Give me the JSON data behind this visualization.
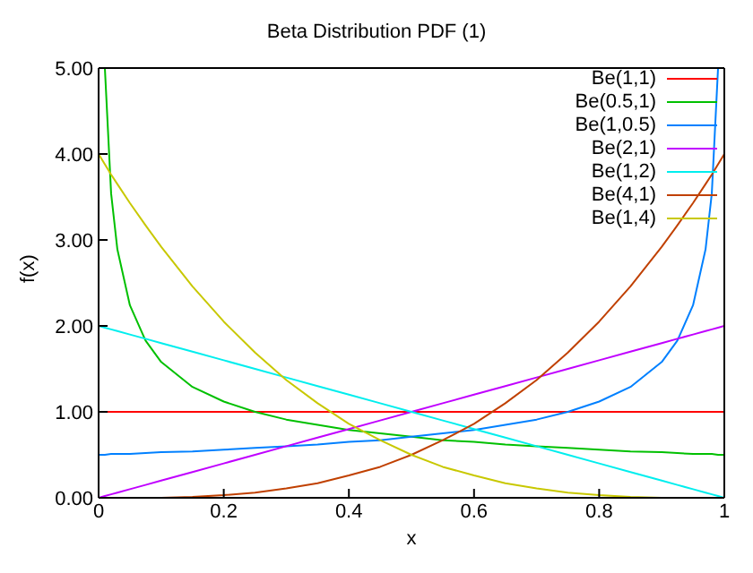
{
  "chart_data": {
    "type": "line",
    "title": "Beta Distribution PDF (1)",
    "xlabel": "x",
    "ylabel": "f(x)",
    "x": [
      0,
      0.01,
      0.02,
      0.03,
      0.05,
      0.075,
      0.1,
      0.15,
      0.2,
      0.25,
      0.3,
      0.35,
      0.4,
      0.45,
      0.5,
      0.55,
      0.6,
      0.65,
      0.7,
      0.75,
      0.8,
      0.85,
      0.9,
      0.925,
      0.95,
      0.97,
      0.98,
      0.99,
      1
    ],
    "series": [
      {
        "name": "Be(1,1)",
        "color": "#ff0000",
        "values": [
          1,
          1,
          1,
          1,
          1,
          1,
          1,
          1,
          1,
          1,
          1,
          1,
          1,
          1,
          1,
          1,
          1,
          1,
          1,
          1,
          1,
          1,
          1,
          1,
          1,
          1,
          1,
          1,
          1
        ]
      },
      {
        "name": "Be(0.5,1)",
        "color": "#00c000",
        "values": [
          null,
          5.0,
          3.54,
          2.89,
          2.24,
          1.83,
          1.58,
          1.29,
          1.12,
          1.0,
          0.91,
          0.85,
          0.79,
          0.75,
          0.71,
          0.67,
          0.65,
          0.62,
          0.6,
          0.58,
          0.56,
          0.54,
          0.53,
          0.52,
          0.51,
          0.51,
          0.51,
          0.5,
          0.5
        ]
      },
      {
        "name": "Be(1,0.5)",
        "color": "#0080ff",
        "values": [
          0.5,
          0.5,
          0.51,
          0.51,
          0.51,
          0.52,
          0.53,
          0.54,
          0.56,
          0.58,
          0.6,
          0.62,
          0.65,
          0.67,
          0.71,
          0.75,
          0.79,
          0.85,
          0.91,
          1.0,
          1.12,
          1.29,
          1.58,
          1.83,
          2.24,
          2.89,
          3.54,
          5.0,
          null
        ]
      },
      {
        "name": "Be(2,1)",
        "color": "#c000ff",
        "values": [
          0,
          0.02,
          0.04,
          0.06,
          0.1,
          0.15,
          0.2,
          0.3,
          0.4,
          0.5,
          0.6,
          0.7,
          0.8,
          0.9,
          1.0,
          1.1,
          1.2,
          1.3,
          1.4,
          1.5,
          1.6,
          1.7,
          1.8,
          1.85,
          1.9,
          1.94,
          1.96,
          1.98,
          2.0
        ]
      },
      {
        "name": "Be(1,2)",
        "color": "#00eeee",
        "values": [
          2.0,
          1.98,
          1.96,
          1.94,
          1.9,
          1.85,
          1.8,
          1.7,
          1.6,
          1.5,
          1.4,
          1.3,
          1.2,
          1.1,
          1.0,
          0.9,
          0.8,
          0.7,
          0.6,
          0.5,
          0.4,
          0.3,
          0.2,
          0.15,
          0.1,
          0.06,
          0.04,
          0.02,
          0
        ]
      },
      {
        "name": "Be(4,1)",
        "color": "#c04000",
        "values": [
          null,
          null,
          null,
          null,
          null,
          0,
          0,
          0.01,
          0.03,
          0.06,
          0.11,
          0.17,
          0.26,
          0.36,
          0.5,
          0.67,
          0.86,
          1.1,
          1.37,
          1.69,
          2.05,
          2.46,
          2.92,
          3.17,
          3.43,
          3.65,
          3.76,
          3.88,
          4.0
        ]
      },
      {
        "name": "Be(1,4)",
        "color": "#c8c800",
        "values": [
          4.0,
          3.88,
          3.76,
          3.65,
          3.43,
          3.17,
          2.92,
          2.46,
          2.05,
          1.69,
          1.37,
          1.1,
          0.86,
          0.67,
          0.5,
          0.36,
          0.26,
          0.17,
          0.11,
          0.06,
          0.03,
          0.01,
          0,
          0,
          null,
          null,
          null,
          null,
          null
        ]
      }
    ],
    "xlim": [
      0,
      1
    ],
    "xticks": [
      {
        "value": 0,
        "label": "0"
      },
      {
        "value": 0.2,
        "label": "0.2"
      },
      {
        "value": 0.4,
        "label": "0.4"
      },
      {
        "value": 0.6,
        "label": "0.6"
      },
      {
        "value": 0.8,
        "label": "0.8"
      },
      {
        "value": 1,
        "label": "1"
      }
    ],
    "ylim": [
      0,
      5
    ],
    "yticks": [
      {
        "value": 0,
        "label": "0.00"
      },
      {
        "value": 1,
        "label": "1.00"
      },
      {
        "value": 2,
        "label": "2.00"
      },
      {
        "value": 3,
        "label": "3.00"
      },
      {
        "value": 4,
        "label": "4.00"
      },
      {
        "value": 5,
        "label": "5.00"
      }
    ],
    "grid": false,
    "legend": "top right",
    "marker": "none",
    "line_style": "solid"
  }
}
